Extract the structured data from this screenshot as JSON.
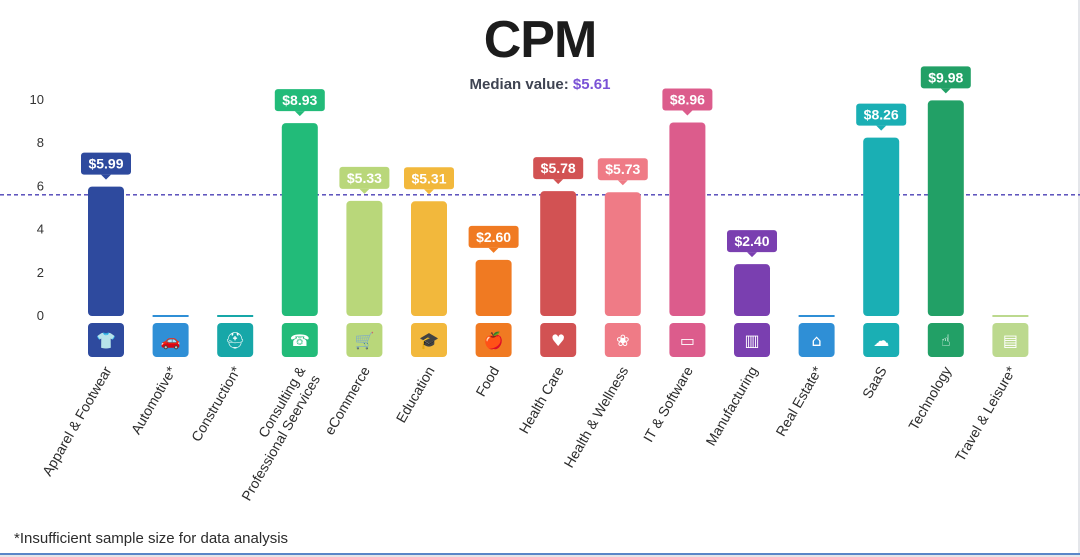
{
  "chart_data": {
    "type": "bar",
    "title": "CPM",
    "subtitle_prefix": "Median value:",
    "median": 5.61,
    "median_label": "$5.61",
    "ylim": [
      0,
      10
    ],
    "yticks": [
      0,
      2,
      4,
      6,
      8,
      10
    ],
    "categories": [
      "Apparel & Footwear",
      "Automotive*",
      "Construction*",
      "Consulting & Professional Seervices",
      "eCommerce",
      "Education",
      "Food",
      "Health Care",
      "Health & Wellness",
      "IT & Software",
      "Manufacturing",
      "Real Estate*",
      "SaaS",
      "Technology",
      "Travel & Leisure*"
    ],
    "values": [
      5.99,
      null,
      null,
      8.93,
      5.33,
      5.31,
      2.6,
      5.78,
      5.73,
      8.96,
      2.4,
      null,
      8.26,
      9.98,
      null
    ],
    "value_labels": [
      "$5.99",
      "",
      "",
      "$8.93",
      "$5.33",
      "$5.31",
      "$2.60",
      "$5.78",
      "$5.73",
      "$8.96",
      "$2.40",
      "",
      "$8.26",
      "$9.98",
      ""
    ],
    "colors": [
      "#2e4a9e",
      "#2f8fd6",
      "#17a7a8",
      "#22bb79",
      "#b9d77a",
      "#f2b83c",
      "#f07a22",
      "#d25253",
      "#ef7b86",
      "#dc5c8c",
      "#7a3fb0",
      "#2f8fd6",
      "#1aafb4",
      "#22a066",
      "#bcd98e"
    ],
    "icons": [
      "tshirt-icon",
      "car-icon",
      "hard-hat-icon",
      "phone-chat-icon",
      "cart-icon",
      "graduation-cap-icon",
      "apple-icon",
      "heart-pulse-icon",
      "lotus-icon",
      "monitor-code-icon",
      "factory-icon",
      "house-key-icon",
      "cloud-network-icon",
      "hand-network-icon",
      "suitcase-icon"
    ],
    "grid": false,
    "legend": "none"
  },
  "footnote": "*Insufficient sample size for data analysis"
}
